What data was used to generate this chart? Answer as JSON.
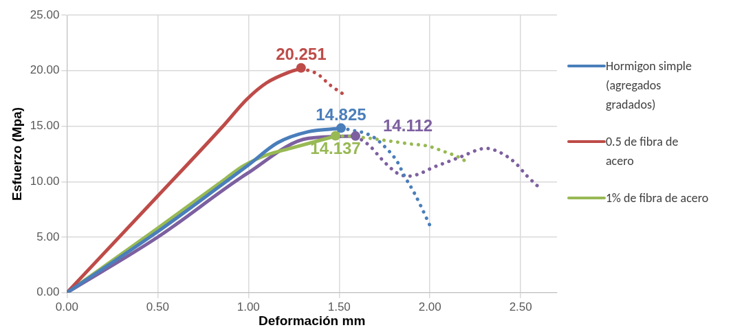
{
  "chart_data": {
    "type": "line",
    "xlabel": "Deformación mm",
    "ylabel": "Esfuerzo (Mpa)",
    "xlim": [
      0,
      2.7
    ],
    "ylim": [
      0,
      25
    ],
    "xticks": [
      {
        "value": 0,
        "label": "0.00"
      },
      {
        "value": 0.5,
        "label": "0.50"
      },
      {
        "value": 1,
        "label": "1.00"
      },
      {
        "value": 1.5,
        "label": "1.50"
      },
      {
        "value": 2,
        "label": "2.00"
      },
      {
        "value": 2.5,
        "label": "2.50"
      }
    ],
    "yticks": [
      {
        "value": 0,
        "label": "0.00"
      },
      {
        "value": 5,
        "label": "5.00"
      },
      {
        "value": 10,
        "label": "10.00"
      },
      {
        "value": 15,
        "label": "15.00"
      },
      {
        "value": 20,
        "label": "20.00"
      },
      {
        "value": 25,
        "label": "25.00"
      }
    ],
    "grid": true,
    "legend": "right",
    "series": [
      {
        "name": "Hormigon simple (agregados gradados)",
        "color": "#4a7ebb",
        "x": [
          0,
          0.5,
          0.86,
          1.0,
          1.16,
          1.33,
          1.51
        ],
        "values": [
          0,
          5.5,
          9.8,
          11.5,
          13.5,
          14.5,
          14.8
        ]
      },
      {
        "line_style": "dotted",
        "color": "#4a7ebb",
        "x": [
          1.51,
          1.55,
          1.68,
          1.76,
          1.82,
          1.86,
          1.91,
          1.95,
          1.99,
          2.01
        ],
        "values": [
          14.8,
          14.7,
          14.1,
          13.0,
          11.8,
          10.5,
          9.1,
          7.8,
          6.4,
          5.7
        ]
      },
      {
        "type": "scatter",
        "color": "#4a7ebb",
        "x": [
          1.51
        ],
        "values": [
          14.825
        ],
        "value_labels": [
          "14.825"
        ]
      },
      {
        "name": "0.5 de fibra de acero",
        "color": "#be4b48",
        "x": [
          0,
          0.5,
          0.86,
          0.99,
          1.1,
          1.23,
          1.29
        ],
        "values": [
          0,
          8.7,
          15.0,
          17.4,
          18.9,
          19.9,
          20.2
        ]
      },
      {
        "line_style": "dotted",
        "color": "#be4b48",
        "x": [
          1.29,
          1.38,
          1.45,
          1.53
        ],
        "values": [
          20.2,
          19.7,
          18.7,
          17.8
        ]
      },
      {
        "type": "scatter",
        "color": "#be4b48",
        "x": [
          1.29
        ],
        "values": [
          20.251
        ],
        "value_labels": [
          "20.251"
        ]
      },
      {
        "name": "1% de fibra de acero",
        "color": "#98b954",
        "x": [
          0,
          0.5,
          0.86,
          0.97,
          1.1,
          1.23,
          1.48
        ],
        "values": [
          0,
          5.8,
          10.1,
          11.4,
          12.4,
          13.0,
          14.1
        ]
      },
      {
        "line_style": "dotted",
        "color": "#98b954",
        "x": [
          1.48,
          1.53,
          1.67,
          1.76,
          1.89,
          1.99,
          2.08,
          2.16,
          2.2
        ],
        "values": [
          14.1,
          14.1,
          13.9,
          13.7,
          13.4,
          13.2,
          12.7,
          12.2,
          11.8
        ]
      },
      {
        "type": "scatter",
        "color": "#98b954",
        "x": [
          1.48
        ],
        "values": [
          14.137
        ],
        "value_labels": [
          "14.137"
        ]
      },
      {
        "color": "#7d60a0",
        "x": [
          0,
          0.5,
          0.99,
          1.33,
          1.59
        ],
        "values": [
          0,
          5.0,
          10.7,
          13.9,
          14.1
        ]
      },
      {
        "line_style": "dotted",
        "color": "#7d60a0",
        "x": [
          1.59,
          1.63,
          1.67,
          1.73,
          1.8,
          1.84,
          1.89,
          1.94,
          2.02,
          2.1,
          2.18,
          2.27,
          2.31,
          2.39,
          2.47,
          2.53,
          2.6
        ],
        "values": [
          14.1,
          13.7,
          13.2,
          12.1,
          11.0,
          10.6,
          10.5,
          10.7,
          11.3,
          11.8,
          12.3,
          12.9,
          13.0,
          12.6,
          11.7,
          10.6,
          9.5
        ]
      },
      {
        "type": "scatter",
        "color": "#7d60a0",
        "x": [
          1.59
        ],
        "values": [
          14.112
        ],
        "value_labels": [
          "14.112"
        ]
      }
    ]
  }
}
